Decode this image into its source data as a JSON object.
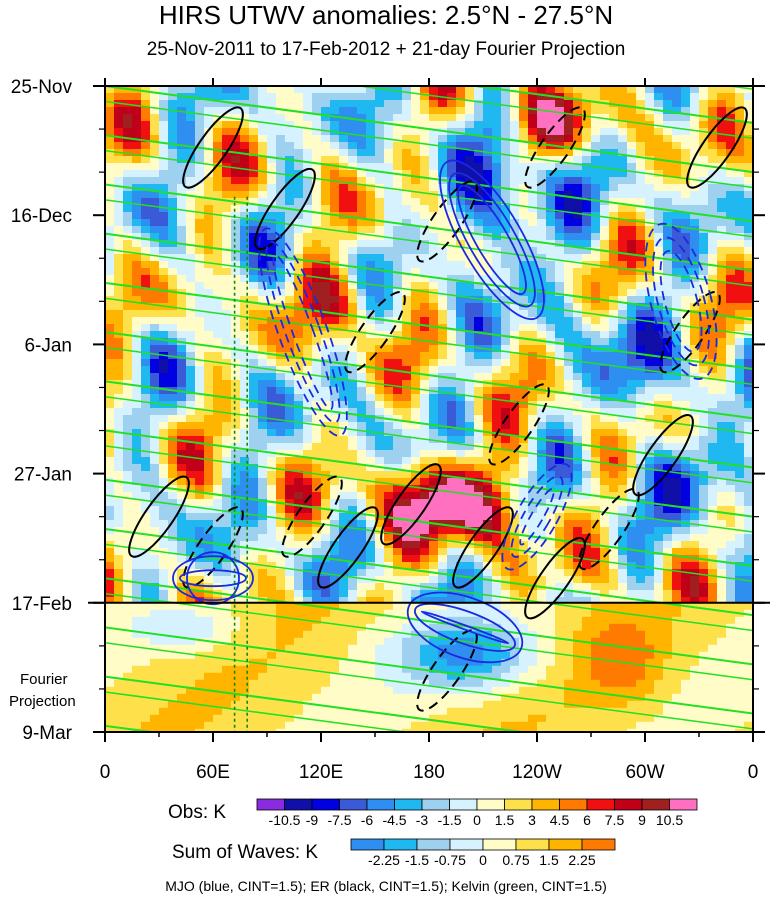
{
  "chart_data": {
    "type": "heatmap",
    "title": "HIRS UTWV anomalies: 2.5°N - 27.5°N",
    "subtitle": "25-Nov-2011 to 17-Feb-2012 + 21-day Fourier Projection",
    "x_ticks": [
      "0",
      "60E",
      "120E",
      "180",
      "120W",
      "60W",
      "0"
    ],
    "x_tick_values": [
      0,
      60,
      120,
      180,
      240,
      300,
      360
    ],
    "y_ticks": [
      "25-Nov",
      "16-Dec",
      "6-Jan",
      "27-Jan",
      "17-Feb",
      "9-Mar"
    ],
    "y_tick_values": [
      0,
      21,
      42,
      63,
      84,
      105
    ],
    "xlim": [
      0,
      360
    ],
    "ylim": [
      0,
      105
    ],
    "projection_start_day": 84,
    "projection_label_line1": "Fourier",
    "projection_label_line2": "Projection",
    "obs_colorbar": {
      "label": "Obs: K",
      "levels": [
        "-10.5",
        "-9",
        "-7.5",
        "-6",
        "-4.5",
        "-3",
        "-1.5",
        "0",
        "1.5",
        "3",
        "4.5",
        "6",
        "7.5",
        "9",
        "10.5"
      ],
      "colors": [
        "#8a2be2",
        "#1010a8",
        "#0000e0",
        "#3a5ad8",
        "#2f8ff0",
        "#20b8f0",
        "#9ed0f0",
        "#d6f2ff",
        "#fffcc8",
        "#fde04a",
        "#ffb400",
        "#ff7a00",
        "#f01010",
        "#c00018",
        "#a02020",
        "#ff70c0"
      ]
    },
    "waves_colorbar": {
      "label": "Sum of Waves: K",
      "levels": [
        "-2.25",
        "-1.5",
        "-0.75",
        "0",
        "0.75",
        "1.5",
        "2.25"
      ],
      "colors": [
        "#2f8ff0",
        "#20b8f0",
        "#9ed0f0",
        "#d6f2ff",
        "#fffcc8",
        "#fde04a",
        "#ffb400",
        "#ff7a00"
      ]
    },
    "caption": "MJO (blue, CINT=1.5); ER (black, CINT=1.5); Kelvin (green, CINT=1.5)"
  }
}
